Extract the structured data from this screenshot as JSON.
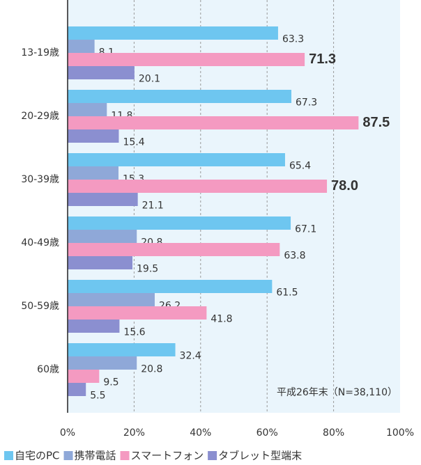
{
  "chart_data": {
    "type": "hbar",
    "categories": [
      "13-19歳",
      "20-29歳",
      "30-39歳",
      "40-49歳",
      "50-59歳",
      "60歳"
    ],
    "series": [
      {
        "name": "自宅のPC",
        "color": "#6ec6f0",
        "values": [
          63.3,
          67.3,
          65.4,
          67.1,
          61.5,
          32.4
        ],
        "value_labels": [
          "63.3",
          "67.3",
          "65.4",
          "67.1",
          "61.5",
          "32.4"
        ]
      },
      {
        "name": "携帯電話",
        "color": "#8fa8d8",
        "values": [
          8.1,
          11.8,
          15.3,
          20.8,
          26.2,
          20.8
        ],
        "value_labels": [
          "8.1",
          "11.8",
          "15.3",
          "20.8",
          "26.2",
          "20.8"
        ]
      },
      {
        "name": "スマートフォン",
        "color": "#f49ac1",
        "values": [
          71.3,
          87.5,
          78.0,
          63.8,
          41.8,
          9.5
        ],
        "value_labels": [
          "71.3",
          "87.5",
          "78.0",
          "63.8",
          "41.8",
          "9.5"
        ],
        "highlight": {
          "color": "#e60012",
          "indices": [
            0,
            1,
            2
          ]
        }
      },
      {
        "name": "タブレット型端末",
        "color": "#8b8fd0",
        "values": [
          20.1,
          15.4,
          21.1,
          19.5,
          15.6,
          5.5
        ],
        "value_labels": [
          "20.1",
          "15.4",
          "21.1",
          "19.5",
          "15.6",
          "5.5"
        ]
      }
    ],
    "annotation": "平成26年末（N=38,110）",
    "xlim": [
      0,
      100
    ],
    "xticks": [
      {
        "value": 0,
        "label": "0%"
      },
      {
        "value": 20,
        "label": "20%"
      },
      {
        "value": 40,
        "label": "40%"
      },
      {
        "value": 60,
        "label": "60%"
      },
      {
        "value": 80,
        "label": "80%"
      },
      {
        "value": 100,
        "label": "100%"
      }
    ],
    "grid": true,
    "legend": "bottom"
  }
}
